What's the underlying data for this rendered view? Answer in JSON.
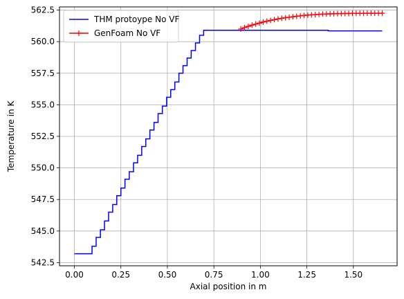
{
  "chart_data": {
    "type": "line",
    "title": "",
    "xlabel": "Axial position in m",
    "ylabel": "Temperature in K",
    "xlim": [
      -0.08,
      1.735
    ],
    "ylim": [
      542.25,
      562.75
    ],
    "xticks": [
      "0.00",
      "0.25",
      "0.50",
      "0.75",
      "1.00",
      "1.25",
      "1.50"
    ],
    "xtick_values": [
      0,
      0.25,
      0.5,
      0.75,
      1.0,
      1.25,
      1.5
    ],
    "yticks": [
      "542.5",
      "545.0",
      "547.5",
      "550.0",
      "552.5",
      "555.0",
      "557.5",
      "560.0",
      "562.5"
    ],
    "ytick_values": [
      542.5,
      545.0,
      547.5,
      550.0,
      552.5,
      555.0,
      557.5,
      560.0,
      562.5
    ],
    "grid": true,
    "legend_position": "top-left",
    "series": [
      {
        "name": "THM protoype No VF",
        "color": "#0000ff",
        "style": "step",
        "marker": "none",
        "x": [
          0.0,
          0.095,
          0.095,
          0.117,
          0.117,
          0.14,
          0.14,
          0.162,
          0.162,
          0.184,
          0.184,
          0.206,
          0.206,
          0.228,
          0.228,
          0.25,
          0.25,
          0.272,
          0.272,
          0.295,
          0.295,
          0.318,
          0.318,
          0.34,
          0.34,
          0.362,
          0.362,
          0.384,
          0.384,
          0.406,
          0.406,
          0.428,
          0.428,
          0.45,
          0.45,
          0.473,
          0.473,
          0.496,
          0.496,
          0.518,
          0.518,
          0.54,
          0.54,
          0.562,
          0.562,
          0.584,
          0.584,
          0.606,
          0.606,
          0.628,
          0.628,
          0.651,
          0.651,
          0.673,
          0.673,
          0.695,
          0.695,
          1.365,
          1.365,
          1.655
        ],
        "y": [
          543.2,
          543.2,
          543.8,
          543.8,
          544.5,
          544.5,
          545.1,
          545.1,
          545.8,
          545.8,
          546.5,
          546.5,
          547.1,
          547.1,
          547.8,
          547.8,
          548.4,
          548.4,
          549.1,
          549.1,
          549.7,
          549.7,
          550.4,
          550.4,
          551.0,
          551.0,
          551.7,
          551.7,
          552.3,
          552.3,
          553.0,
          553.0,
          553.6,
          553.6,
          554.3,
          554.3,
          554.9,
          554.9,
          555.6,
          555.6,
          556.2,
          556.2,
          556.8,
          556.8,
          557.5,
          557.5,
          558.1,
          558.1,
          558.7,
          558.7,
          559.3,
          559.3,
          559.9,
          559.9,
          560.5,
          560.5,
          560.9,
          560.9,
          560.85,
          560.85
        ]
      },
      {
        "name": "GenFoam No VF",
        "color": "#ff0000",
        "style": "line",
        "marker": "+",
        "x": [
          0.895,
          0.915,
          0.935,
          0.955,
          0.975,
          0.995,
          1.015,
          1.035,
          1.055,
          1.075,
          1.095,
          1.115,
          1.135,
          1.155,
          1.175,
          1.195,
          1.215,
          1.235,
          1.255,
          1.275,
          1.295,
          1.315,
          1.335,
          1.355,
          1.375,
          1.395,
          1.415,
          1.435,
          1.455,
          1.475,
          1.495,
          1.515,
          1.535,
          1.555,
          1.575,
          1.595,
          1.615,
          1.635,
          1.655
        ],
        "y": [
          561.0,
          561.11,
          561.21,
          561.31,
          561.39,
          561.47,
          561.55,
          561.62,
          561.68,
          561.74,
          561.8,
          561.85,
          561.89,
          561.93,
          561.97,
          562.01,
          562.04,
          562.07,
          562.1,
          562.12,
          562.14,
          562.16,
          562.18,
          562.19,
          562.2,
          562.21,
          562.22,
          562.22,
          562.23,
          562.23,
          562.24,
          562.24,
          562.24,
          562.24,
          562.25,
          562.25,
          562.25,
          562.25,
          562.25
        ]
      }
    ]
  }
}
